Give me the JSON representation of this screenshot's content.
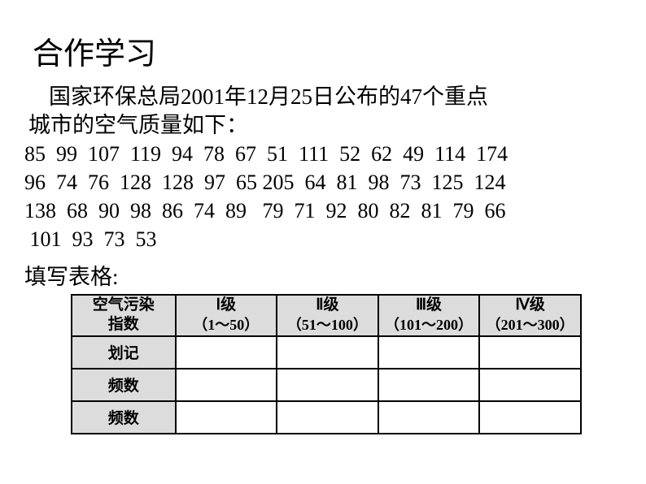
{
  "title": "合作学习",
  "intro_line1": "国家环保总局2001年12月25日公布的47个重点",
  "intro_line2": "城市的空气质量如下：",
  "data_row1": "85  99  107  119  94  78  67  51  111  52  62  49  114  174",
  "data_row2": "96  74  76  128  128  97  65 205  64  81  98  73  125  124",
  "data_row3": "138  68  90  98  86  74  89   79  71  92  80  82  81  79  66",
  "data_row4": " 101  93  73  53",
  "table_label": "填写表格:",
  "table": {
    "headers": {
      "col0_line1": "空气污染",
      "col0_line2": "指数",
      "col1_line1": "Ⅰ级",
      "col1_line2": "（1～50）",
      "col2_line1": "Ⅱ级",
      "col2_line2": "（51～100）",
      "col3_line1": "Ⅲ级",
      "col3_line2": "（101～200）",
      "col4_line1": "Ⅳ级",
      "col4_line2": "（201～300）"
    },
    "rows": {
      "row1_label": "划记",
      "row2_label": "频数",
      "row3_label": "频数"
    }
  },
  "colors": {
    "background": "#ffffff",
    "text": "#000000",
    "table_header_bg": "#dcdcdc",
    "table_border": "#000000"
  },
  "typography": {
    "title_fontsize": 38,
    "body_fontsize": 27,
    "data_fontsize": 26,
    "table_fontsize": 19,
    "font_family": "SimSun"
  }
}
